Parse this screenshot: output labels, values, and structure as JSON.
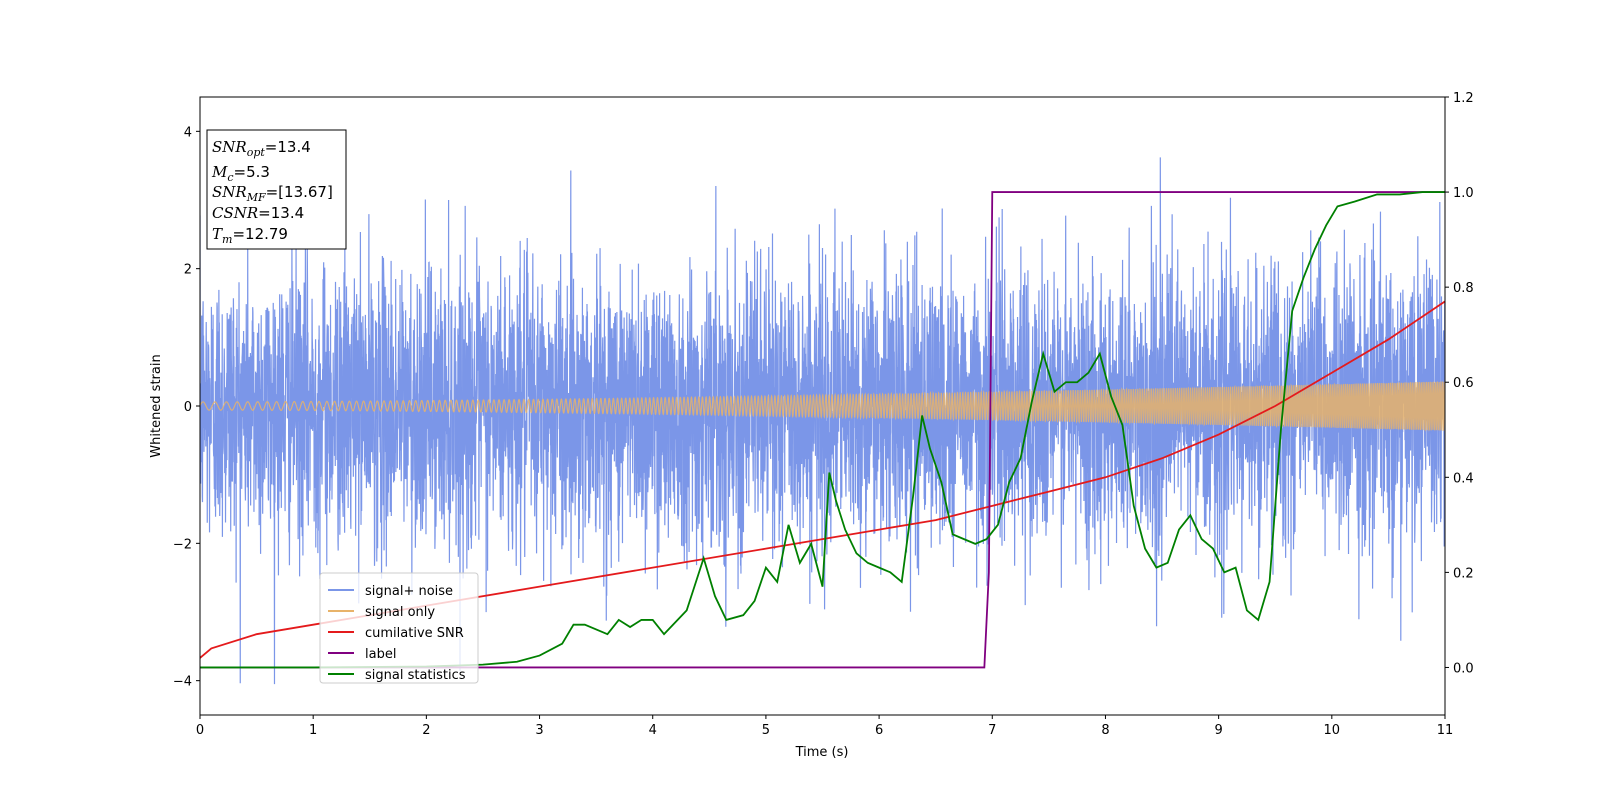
{
  "chart_data": {
    "type": "line",
    "xlabel": "Time (s)",
    "ylabel": "Whitened strain",
    "xlim": [
      0,
      11
    ],
    "ylim": [
      -4.5,
      4.5
    ],
    "y2lim": [
      -0.1,
      1.2
    ],
    "xticks": [
      "0",
      "1",
      "2",
      "3",
      "4",
      "5",
      "6",
      "7",
      "8",
      "9",
      "10",
      "11"
    ],
    "yticks": [
      "−4",
      "−2",
      "0",
      "2",
      "4"
    ],
    "y2ticks": [
      "0.0",
      "0.2",
      "0.4",
      "0.6",
      "0.8",
      "1.0",
      "1.2"
    ],
    "legend_position": "lower-left",
    "info_box": {
      "snr_opt": "=13.4",
      "mc": "=5.3",
      "snr_mf": "=[13.67]",
      "csnr": "=13.4",
      "tm": "=12.79"
    },
    "series": [
      {
        "name": "signal+ noise",
        "color": "#7b96e8",
        "axis": "left",
        "style": "noise",
        "envelope_sigma": 1.0,
        "envelope_max": 4.05
      },
      {
        "name": "signal only",
        "color": "#e8b36a",
        "axis": "left",
        "style": "chirp",
        "amplitude_start": 0.06,
        "amplitude_end": 0.36
      },
      {
        "name": "cumilative SNR",
        "color": "#e41a1c",
        "axis": "right",
        "x": [
          0,
          0.1,
          0.5,
          1,
          2,
          3,
          4,
          5,
          6,
          6.5,
          7,
          7.5,
          8,
          8.5,
          9,
          9.5,
          10,
          10.5,
          11
        ],
        "y": [
          0.02,
          0.04,
          0.07,
          0.09,
          0.13,
          0.17,
          0.21,
          0.25,
          0.29,
          0.31,
          0.34,
          0.37,
          0.4,
          0.44,
          0.49,
          0.55,
          0.62,
          0.69,
          0.77
        ]
      },
      {
        "name": "label",
        "color": "#800080",
        "axis": "right",
        "x": [
          0,
          6.93,
          6.97,
          7.0,
          11
        ],
        "y": [
          0,
          0,
          0.2,
          1.0,
          1.0
        ]
      },
      {
        "name": "signal statistics",
        "color": "#008000",
        "axis": "right",
        "x": [
          0,
          1,
          2,
          2.5,
          2.8,
          3.0,
          3.2,
          3.3,
          3.4,
          3.6,
          3.7,
          3.8,
          3.9,
          4.0,
          4.1,
          4.3,
          4.45,
          4.55,
          4.65,
          4.8,
          4.9,
          5.0,
          5.1,
          5.2,
          5.3,
          5.4,
          5.5,
          5.56,
          5.62,
          5.7,
          5.8,
          5.9,
          6.0,
          6.1,
          6.2,
          6.3,
          6.38,
          6.45,
          6.55,
          6.65,
          6.75,
          6.85,
          6.95,
          7.05,
          7.15,
          7.25,
          7.35,
          7.45,
          7.55,
          7.65,
          7.75,
          7.85,
          7.95,
          8.05,
          8.15,
          8.25,
          8.35,
          8.45,
          8.55,
          8.65,
          8.75,
          8.85,
          8.95,
          9.05,
          9.15,
          9.25,
          9.35,
          9.45,
          9.55,
          9.65,
          9.75,
          9.85,
          9.95,
          10.05,
          10.2,
          10.4,
          10.6,
          10.8,
          11
        ],
        "y": [
          0,
          0,
          0.002,
          0.006,
          0.012,
          0.025,
          0.05,
          0.09,
          0.09,
          0.07,
          0.1,
          0.085,
          0.1,
          0.1,
          0.07,
          0.12,
          0.23,
          0.15,
          0.1,
          0.11,
          0.14,
          0.21,
          0.18,
          0.3,
          0.22,
          0.26,
          0.17,
          0.41,
          0.35,
          0.29,
          0.24,
          0.22,
          0.21,
          0.2,
          0.18,
          0.36,
          0.53,
          0.46,
          0.39,
          0.28,
          0.27,
          0.26,
          0.27,
          0.3,
          0.39,
          0.44,
          0.56,
          0.66,
          0.58,
          0.6,
          0.6,
          0.62,
          0.66,
          0.57,
          0.51,
          0.34,
          0.25,
          0.21,
          0.22,
          0.29,
          0.32,
          0.27,
          0.25,
          0.2,
          0.21,
          0.12,
          0.1,
          0.18,
          0.5,
          0.75,
          0.82,
          0.88,
          0.93,
          0.97,
          0.98,
          0.995,
          0.995,
          1.0,
          1.0
        ]
      }
    ]
  }
}
